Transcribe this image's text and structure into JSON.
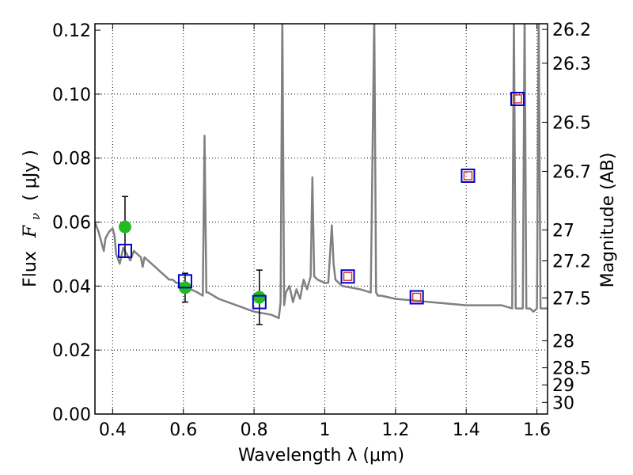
{
  "chart_data": {
    "type": "line",
    "xlabel": "Wavelength  λ (μm)",
    "ylabel_prefix": "Flux",
    "ylabel_symbol": "F",
    "ylabel_subscript": "ν",
    "ylabel_unit": "( μJy )",
    "y2label": "Magnitude (AB)",
    "xlim": [
      0.35,
      1.63
    ],
    "ylim": [
      0.0,
      0.122
    ],
    "grid": true,
    "x_ticks": [
      0.4,
      0.6,
      0.8,
      1.0,
      1.2,
      1.4,
      1.6
    ],
    "x_tick_labels": [
      "0.4",
      "0.6",
      "0.8",
      "1",
      "1.2",
      "1.4",
      "1.6"
    ],
    "y_ticks": [
      0.0,
      0.02,
      0.04,
      0.06,
      0.08,
      0.1,
      0.12
    ],
    "y_tick_labels": [
      "0.00",
      "0.02",
      "0.04",
      "0.06",
      "0.08",
      "0.10",
      "0.12"
    ],
    "y2_ticks": [
      26.2,
      26.3,
      26.5,
      26.7,
      27,
      27.2,
      27.5,
      28,
      28.5,
      29,
      30
    ],
    "y2_tick_labels": [
      "26.2",
      "26.3",
      "26.5",
      "26.7",
      "27",
      "27.2",
      "27.5",
      "28",
      "28.5",
      "29",
      "30"
    ],
    "colors": {
      "model": "#808080",
      "observed": "#22bb22",
      "errorbar": "#000000",
      "model_band": "#0000cc",
      "model_band_inner": "#dd3333"
    },
    "series": [
      {
        "kind": "model-spectrum",
        "x": [
          0.35,
          0.36,
          0.37,
          0.375,
          0.38,
          0.39,
          0.4,
          0.405,
          0.41,
          0.42,
          0.43,
          0.44,
          0.45,
          0.46,
          0.47,
          0.48,
          0.485,
          0.49,
          0.5,
          0.51,
          0.52,
          0.53,
          0.54,
          0.55,
          0.56,
          0.57,
          0.58,
          0.59,
          0.6,
          0.62,
          0.64,
          0.655,
          0.66,
          0.665,
          0.67,
          0.7,
          0.75,
          0.8,
          0.85,
          0.87,
          0.875,
          0.88,
          0.885,
          0.89,
          0.9,
          0.91,
          0.92,
          0.93,
          0.94,
          0.95,
          0.96,
          0.965,
          0.97,
          0.98,
          1.0,
          1.01,
          1.02,
          1.025,
          1.03,
          1.05,
          1.1,
          1.13,
          1.14,
          1.145,
          1.15,
          1.16,
          1.2,
          1.3,
          1.4,
          1.5,
          1.53,
          1.535,
          1.54,
          1.56,
          1.565,
          1.57,
          1.58,
          1.59,
          1.6,
          1.605,
          1.61,
          1.63
        ],
        "y": [
          0.06,
          0.057,
          0.053,
          0.051,
          0.055,
          0.057,
          0.058,
          0.056,
          0.05,
          0.047,
          0.052,
          0.05,
          0.048,
          0.051,
          0.05,
          0.049,
          0.046,
          0.049,
          0.048,
          0.047,
          0.046,
          0.045,
          0.044,
          0.043,
          0.042,
          0.042,
          0.041,
          0.041,
          0.04,
          0.039,
          0.038,
          0.037,
          0.087,
          0.038,
          0.038,
          0.036,
          0.034,
          0.032,
          0.031,
          0.03,
          0.035,
          0.125,
          0.034,
          0.038,
          0.04,
          0.035,
          0.039,
          0.036,
          0.042,
          0.039,
          0.043,
          0.074,
          0.043,
          0.042,
          0.041,
          0.041,
          0.059,
          0.047,
          0.042,
          0.04,
          0.039,
          0.038,
          0.125,
          0.038,
          0.037,
          0.037,
          0.036,
          0.035,
          0.034,
          0.034,
          0.033,
          0.125,
          0.033,
          0.033,
          0.125,
          0.033,
          0.033,
          0.032,
          0.033,
          0.125,
          0.033,
          0.033
        ]
      },
      {
        "kind": "observed",
        "x": [
          0.435,
          0.605,
          0.815
        ],
        "y": [
          0.0585,
          0.0395,
          0.0365
        ],
        "y_err": [
          0.0095,
          0.0045,
          0.0085
        ]
      },
      {
        "kind": "model-photometry",
        "x": [
          0.435,
          0.605,
          0.815,
          1.065,
          1.26,
          1.405,
          1.545
        ],
        "y": [
          0.051,
          0.0415,
          0.035,
          0.043,
          0.0365,
          0.0745,
          0.0985
        ],
        "inner": [
          false,
          false,
          false,
          true,
          true,
          true,
          true
        ]
      }
    ]
  }
}
